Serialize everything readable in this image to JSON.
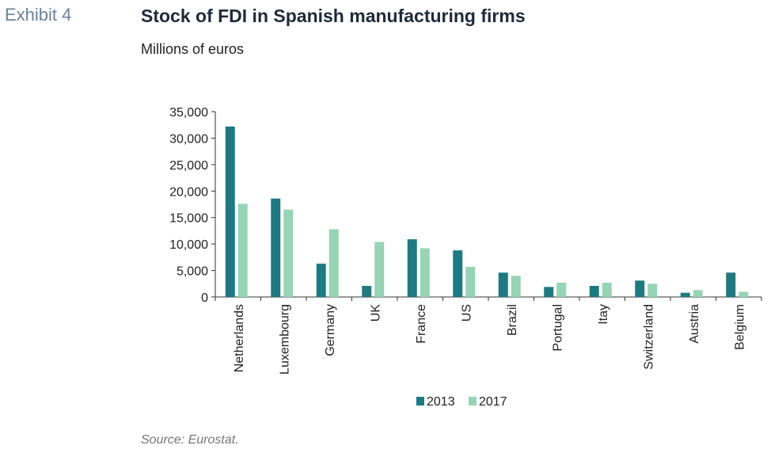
{
  "header": {
    "exhibit": "Exhibit 4",
    "title": "Stock of FDI in Spanish manufacturing firms",
    "subtitle": "Millions of euros"
  },
  "footer": {
    "source": "Source: Eurostat."
  },
  "colors": {
    "series_2013": "#1e7a80",
    "series_2017": "#96d4b5"
  },
  "chart_data": {
    "type": "bar",
    "title": "Stock of FDI in Spanish manufacturing firms",
    "subtitle": "Millions of euros",
    "xlabel": "",
    "ylabel": "",
    "ylim": [
      0,
      35000
    ],
    "yticks": [
      0,
      5000,
      10000,
      15000,
      20000,
      25000,
      30000,
      35000
    ],
    "ytick_labels": [
      "0",
      "5,000",
      "10,000",
      "15,000",
      "20,000",
      "25,000",
      "30,000",
      "35,000"
    ],
    "categories": [
      "Netherlands",
      "Luxembourg",
      "Germany",
      "UK",
      "France",
      "US",
      "Brazil",
      "Portugal",
      "Itay",
      "Switzerland",
      "Austria",
      "Belgium"
    ],
    "series": [
      {
        "name": "2013",
        "values": [
          32200,
          18600,
          6300,
          2100,
          10900,
          8800,
          4600,
          1900,
          2100,
          3100,
          800,
          4600
        ]
      },
      {
        "name": "2017",
        "values": [
          17600,
          16500,
          12800,
          10400,
          9200,
          5700,
          4000,
          2700,
          2700,
          2500,
          1300,
          1000
        ]
      }
    ],
    "legend": "bottom-center",
    "grid": false
  }
}
